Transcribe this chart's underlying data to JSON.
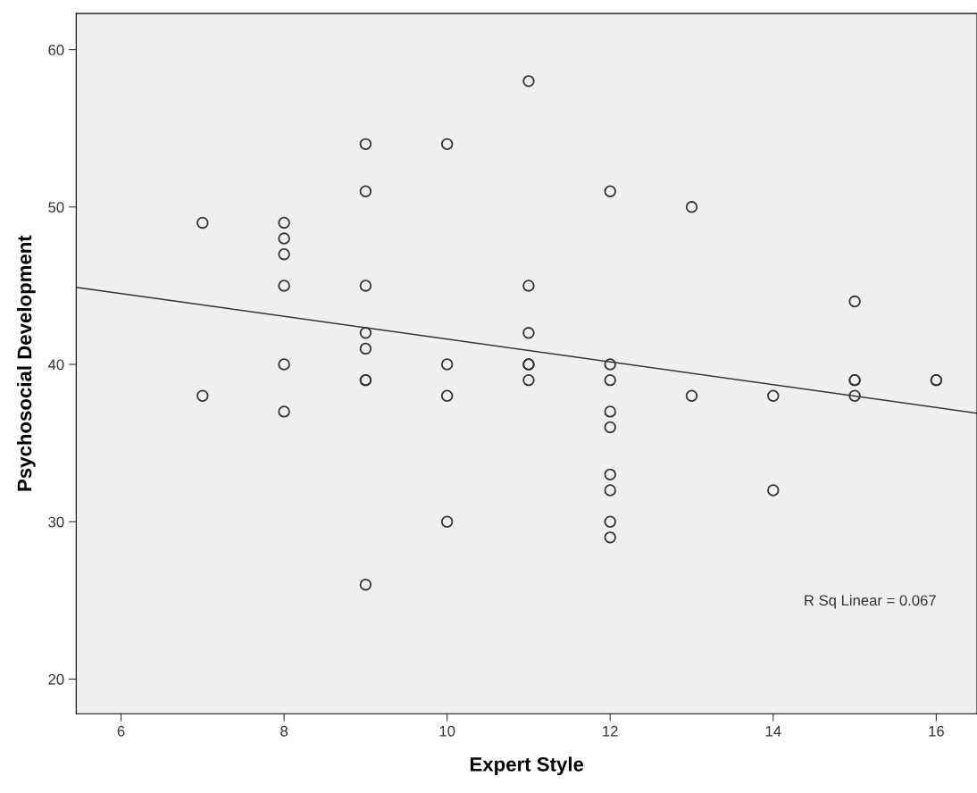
{
  "chart_data": {
    "type": "scatter",
    "xlabel": "Expert Style",
    "ylabel": "Psychosocial Development",
    "xlim": [
      5.45,
      16.5
    ],
    "ylim": [
      17.8,
      62.3
    ],
    "xticks": [
      6,
      8,
      10,
      12,
      14,
      16
    ],
    "yticks": [
      20,
      30,
      40,
      50,
      60
    ],
    "grid": false,
    "legend": false,
    "annotations": [
      "R Sq Linear = 0.067"
    ],
    "series": [
      {
        "marker": "circle",
        "color": "#333333",
        "x": [
          7,
          7,
          8,
          8,
          8,
          8,
          8,
          8,
          9,
          9,
          9,
          9,
          9,
          9,
          9,
          9,
          10,
          10,
          10,
          10,
          11,
          11,
          11,
          11,
          11,
          11,
          12,
          12,
          12,
          12,
          12,
          12,
          12,
          12,
          12,
          13,
          13,
          14,
          14,
          15,
          15,
          15,
          15,
          16,
          16
        ],
        "values": [
          49,
          38,
          49,
          48,
          47,
          45,
          40,
          37,
          54,
          51,
          45,
          42,
          41,
          39,
          39,
          26,
          54,
          40,
          38,
          30,
          58,
          45,
          42,
          40,
          40,
          39,
          51,
          40,
          39,
          37,
          36,
          33,
          32,
          30,
          29,
          50,
          38,
          38,
          32,
          44,
          39,
          39,
          38,
          39,
          39
        ]
      },
      {
        "type": "line",
        "marker": "none",
        "color": "#333333",
        "x": [
          5.45,
          16.5
        ],
        "values": [
          44.9,
          36.9
        ]
      }
    ]
  }
}
